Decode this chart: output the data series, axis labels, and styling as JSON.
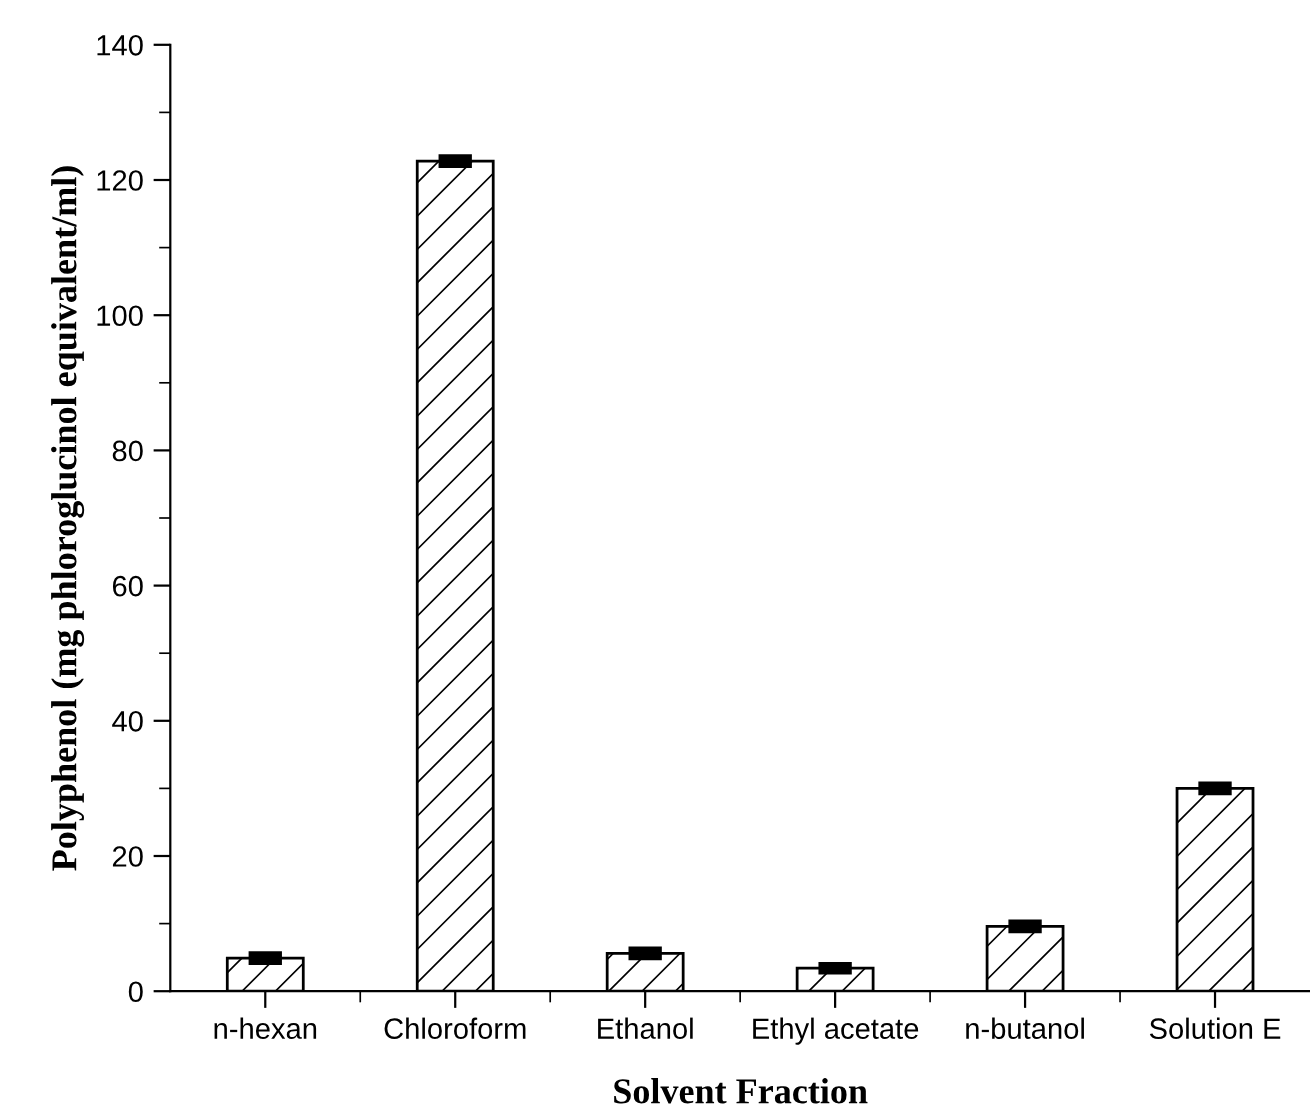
{
  "chart_data": {
    "type": "bar",
    "xlabel": "Solvent Fraction",
    "ylabel": "Polyphenol (mg phloroglucinol equivalent/ml)",
    "categories": [
      "n-hexan",
      "Chloroform",
      "Ethanol",
      "Ethyl acetate",
      "n-butanol",
      "Solution E"
    ],
    "values": [
      4.9,
      122.8,
      5.6,
      3.4,
      9.6,
      30.0
    ],
    "errors": [
      0.5,
      0.5,
      0.5,
      0.4,
      0.5,
      0.5
    ],
    "color": "#000000",
    "ylim": [
      0,
      140
    ],
    "yticks": [
      0,
      20,
      40,
      60,
      80,
      100,
      120,
      140
    ],
    "grid": false,
    "legend": false
  }
}
